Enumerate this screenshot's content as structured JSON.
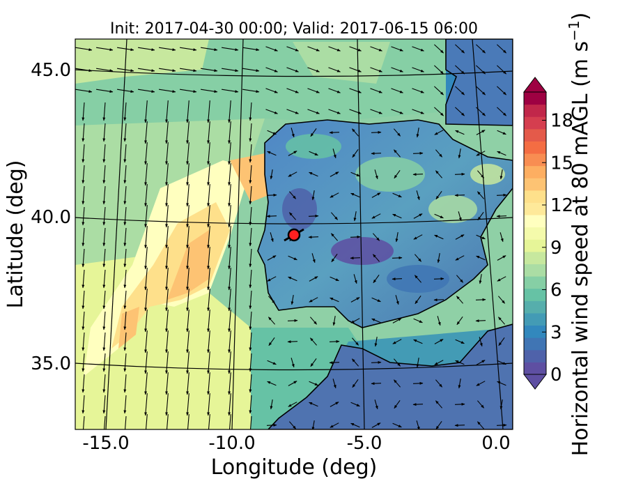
{
  "chart_data": {
    "type": "heatmap",
    "title": "Init: 2017-04-30 00:00; Valid: 2017-06-15 06:00",
    "xlabel": "Longitude (deg)",
    "ylabel": "Latitude (deg)",
    "xlim": [
      -16.0,
      0.4
    ],
    "ylim": [
      32.3,
      46.2
    ],
    "xticks": [
      "-15.0",
      "-10.0",
      "-5.0",
      "0.0"
    ],
    "yticks": [
      "35.0",
      "40.0",
      "45.0"
    ],
    "colorbar": {
      "label": "Horizontal wind speed at 80 mAGL (m s",
      "label_superscript": "−1",
      "label_close": ")",
      "ticks": [
        "0",
        "3",
        "6",
        "9",
        "12",
        "15",
        "18"
      ],
      "range": [
        0,
        20
      ],
      "extend": "both",
      "colormap": "Spectral_r",
      "levels": [
        "#5e4fa2",
        "#4f62aa",
        "#4075b4",
        "#3288bd",
        "#439bb5",
        "#56aeac",
        "#66c2a5",
        "#86cfa5",
        "#abdda4",
        "#c7e89e",
        "#e6f598",
        "#f4faab",
        "#ffffbf",
        "#fee99a",
        "#fee08b",
        "#fdc373",
        "#fdae61",
        "#f88d52",
        "#f46d43",
        "#e45a4a",
        "#d53e4f",
        "#c1274a",
        "#9e0142"
      ]
    },
    "marker": {
      "label": "site",
      "lon": -7.7,
      "lat": 39.3,
      "color": "#ff2020"
    },
    "grid": true,
    "vector_field": "wind direction arrows at 80 mAGL"
  }
}
